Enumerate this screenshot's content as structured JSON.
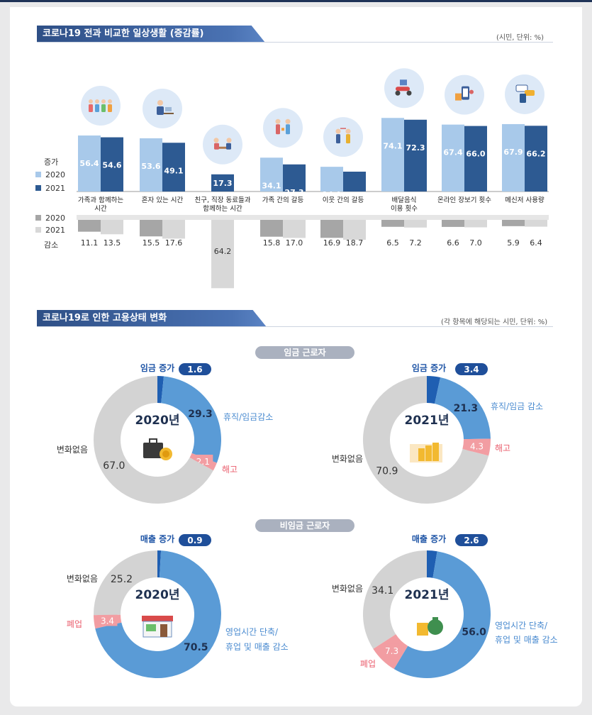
{
  "section1": {
    "title": "코로나19 전과 비교한 일상생활 (증감률)",
    "unit": "(시민, 단위: %)",
    "increase_label": "증가",
    "decrease_label": "감소",
    "legend_up": [
      "2020",
      "2021"
    ],
    "legend_down": [
      "2020",
      "2021"
    ]
  },
  "section2": {
    "title": "코로나19로 인한 고용상태 변화",
    "unit": "(각 항목에 해당되는 시민, 단위: %)",
    "group_wage": "임금 근로자",
    "group_nonwage": "비임금 근로자"
  },
  "colors": {
    "inc2020": "#a8c9ea",
    "inc2021": "#2d5a92",
    "dec2020": "#a6a6a6",
    "dec2021": "#d8d8d8",
    "donut_main": "#5a9bd6",
    "donut_increase": "#1f5fb2",
    "donut_cut": "#f29da2",
    "donut_none": "#d3d3d3",
    "label_blue": "#4a8bd0",
    "label_red": "#ea5e6d",
    "label_navy": "#1f55a6"
  },
  "chart_data": [
    {
      "type": "bar",
      "categories": [
        "가족과 함께하는 시간",
        "혼자 있는 시간",
        "친구, 직장 동료들과 함께하는 시간",
        "가족 간의 갈등",
        "이웃 간의 갈등",
        "배달음식 이용 횟수",
        "온라인 장보기 횟수",
        "메신저 사용량"
      ],
      "category_lines": [
        [
          "가족과 함께하는",
          "시간"
        ],
        [
          "혼자 있는 시간"
        ],
        [
          "친구, 직장 동료들과",
          "함께하는 시간"
        ],
        [
          "가족 간의 갈등"
        ],
        [
          "이웃 간의 갈등"
        ],
        [
          "배달음식",
          "이용 횟수"
        ],
        [
          "온라인 장보기 횟수"
        ],
        [
          "메신저 사용량"
        ]
      ],
      "icons": [
        "family-icon",
        "person-alone-icon",
        "friends-meeting-icon",
        "family-conflict-icon",
        "neighbor-conflict-icon",
        "delivery-scooter-icon",
        "online-shopping-icon",
        "messenger-icon"
      ],
      "series": [
        {
          "name": "2020",
          "direction": "증가",
          "values": [
            56.4,
            53.6,
            null,
            34.1,
            24.9,
            74.1,
            67.4,
            67.9
          ]
        },
        {
          "name": "2021",
          "direction": "증가",
          "values": [
            54.6,
            49.1,
            17.3,
            27.3,
            20.0,
            72.3,
            66.0,
            66.2
          ]
        },
        {
          "name": "2020",
          "direction": "감소",
          "values": [
            11.1,
            15.5,
            null,
            15.8,
            16.9,
            6.5,
            6.6,
            5.9
          ]
        },
        {
          "name": "2021",
          "direction": "감소",
          "values": [
            13.5,
            17.6,
            64.2,
            17.0,
            18.7,
            7.2,
            7.0,
            6.4
          ]
        }
      ],
      "value_labels": {
        "inc2020": [
          "56.4",
          "53.6",
          "",
          "34.1",
          "24.9",
          "74.1",
          "67.4",
          "67.9"
        ],
        "inc2021": [
          "54.6",
          "49.1",
          "17.3",
          "27.3",
          "20.0",
          "72.3",
          "66.0",
          "66.2"
        ],
        "dec2020": [
          "11.1",
          "15.5",
          "",
          "15.8",
          "16.9",
          "6.5",
          "6.6",
          "5.9"
        ],
        "dec2021": [
          "13.5",
          "17.6",
          "64.2",
          "17.0",
          "18.7",
          "7.2",
          "7.0",
          "6.4"
        ]
      }
    },
    {
      "type": "pie",
      "group": "임금 근로자",
      "center_label": "2020년",
      "icon": "briefcase-coins-icon",
      "slices": [
        {
          "label": "임금 증가",
          "value": 1.6,
          "text": "1.6",
          "kind": "increase"
        },
        {
          "label": "휴직/임금감소",
          "value": 29.3,
          "text": "29.3",
          "kind": "main"
        },
        {
          "label": "해고",
          "value": 2.1,
          "text": "2.1",
          "kind": "cut"
        },
        {
          "label": "변화없음",
          "value": 67.0,
          "text": "67.0",
          "kind": "none"
        }
      ]
    },
    {
      "type": "pie",
      "group": "임금 근로자",
      "center_label": "2021년",
      "icon": "coin-stacks-icon",
      "slices": [
        {
          "label": "임금 증가",
          "value": 3.4,
          "text": "3.4",
          "kind": "increase"
        },
        {
          "label": "휴직/임금 감소",
          "value": 21.3,
          "text": "21.3",
          "kind": "main"
        },
        {
          "label": "해고",
          "value": 4.3,
          "text": "4.3",
          "kind": "cut"
        },
        {
          "label": "변화없음",
          "value": 70.9,
          "text": "70.9",
          "kind": "none"
        }
      ]
    },
    {
      "type": "pie",
      "group": "비임금 근로자",
      "center_label": "2020년",
      "icon": "storefront-icon",
      "slices": [
        {
          "label": "매출 증가",
          "value": 0.9,
          "text": "0.9",
          "kind": "increase"
        },
        {
          "label": "영업시간 단축/ 휴업 및 매출 감소",
          "label_lines": [
            "영업시간 단축/",
            "휴업 및 매출 감소"
          ],
          "value": 70.5,
          "text": "70.5",
          "kind": "main"
        },
        {
          "label": "폐업",
          "value": 3.4,
          "text": "3.4",
          "kind": "cut"
        },
        {
          "label": "변화없음",
          "value": 25.2,
          "text": "25.2",
          "kind": "none"
        }
      ]
    },
    {
      "type": "pie",
      "group": "비임금 근로자",
      "center_label": "2021년",
      "icon": "money-bag-coins-icon",
      "slices": [
        {
          "label": "매출 증가",
          "value": 2.6,
          "text": "2.6",
          "kind": "increase"
        },
        {
          "label": "영업시간 단축/ 휴업 및 매출 감소",
          "label_lines": [
            "영업시간 단축/",
            "휴업 및 매출 감소"
          ],
          "value": 56.0,
          "text": "56.0",
          "kind": "main"
        },
        {
          "label": "폐업",
          "value": 7.3,
          "text": "7.3",
          "kind": "cut"
        },
        {
          "label": "변화없음",
          "value": 34.1,
          "text": "34.1",
          "kind": "none"
        }
      ]
    }
  ]
}
